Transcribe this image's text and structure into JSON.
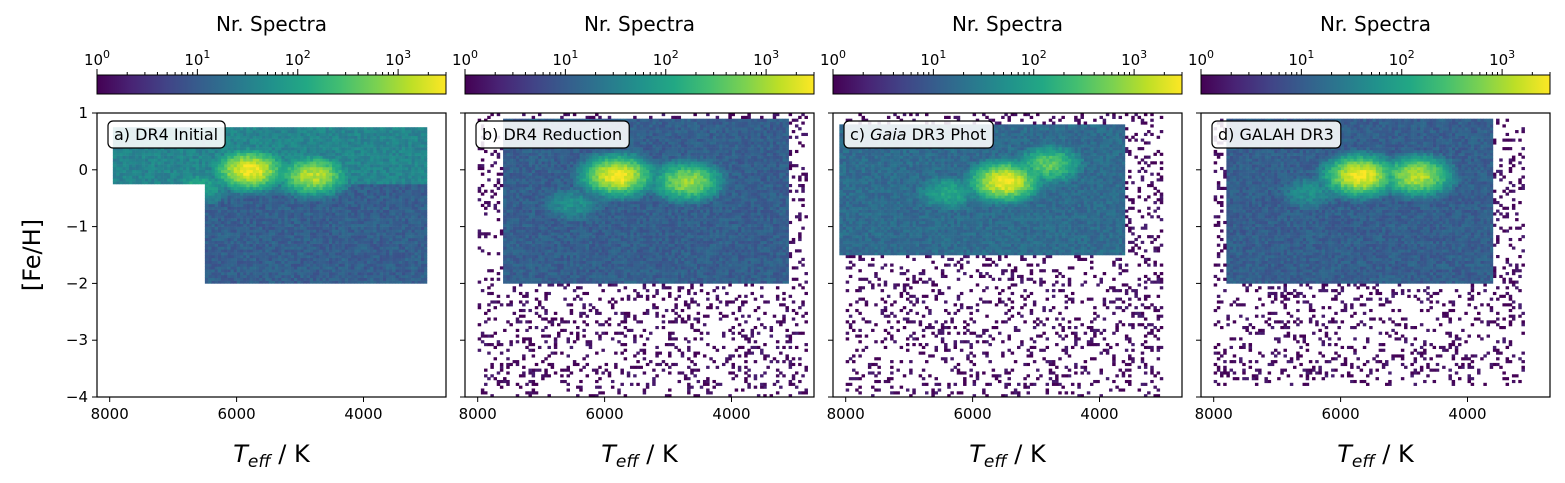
{
  "chart_data": [
    {
      "type": "heatmap",
      "panel_label": "a) DR4 Initial",
      "colorbar_label": "Nr. Spectra",
      "xlabel_symbol": "T",
      "xlabel_sub": "eff",
      "xlabel_unit": " / K",
      "ylabel": "[Fe/H]",
      "xlim": [
        8200,
        2700
      ],
      "ylim": [
        -4,
        1
      ],
      "xticks": [
        "8000",
        "6000",
        "4000"
      ],
      "yticks": [
        "1",
        "0",
        "−1",
        "−2",
        "−3",
        "−4"
      ],
      "colorbar_range": [
        1,
        3000
      ],
      "colorbar_ticks": [
        {
          "base": "10",
          "exp": "0"
        },
        {
          "base": "10",
          "exp": "1"
        },
        {
          "base": "10",
          "exp": "2"
        },
        {
          "base": "10",
          "exp": "3"
        }
      ],
      "colorbar_scale": "log",
      "density_regions": [
        {
          "teff": [
            3000,
            7950
          ],
          "feh": [
            -0.25,
            0.75
          ],
          "level": 0.45
        },
        {
          "teff": [
            3000,
            6500
          ],
          "feh": [
            -2.0,
            -0.25
          ],
          "level": 0.3
        },
        {
          "teff": [
            3000,
            3500
          ],
          "feh": [
            -2.0,
            -0.5
          ],
          "level": 0.1
        }
      ],
      "density_peaks": [
        {
          "teff": 5800,
          "feh": 0.0,
          "level": 1.0
        },
        {
          "teff": 4800,
          "feh": -0.1,
          "level": 0.9
        },
        {
          "teff": 6600,
          "feh": -0.3,
          "level": 0.6
        }
      ]
    },
    {
      "type": "heatmap",
      "panel_label": "b) DR4 Reduction",
      "colorbar_label": "Nr. Spectra",
      "xlabel_symbol": "T",
      "xlabel_sub": "eff",
      "xlabel_unit": " / K",
      "xlim": [
        8200,
        2700
      ],
      "ylim": [
        -4,
        1
      ],
      "xticks": [
        "8000",
        "6000",
        "4000"
      ],
      "colorbar_range": [
        1,
        3000
      ],
      "colorbar_ticks": [
        {
          "base": "10",
          "exp": "0"
        },
        {
          "base": "10",
          "exp": "1"
        },
        {
          "base": "10",
          "exp": "2"
        },
        {
          "base": "10",
          "exp": "3"
        }
      ],
      "colorbar_scale": "log",
      "density_regions": [
        {
          "teff": [
            3100,
            7600
          ],
          "feh": [
            -2.0,
            0.9
          ],
          "level": 0.3
        },
        {
          "teff": [
            2800,
            8000
          ],
          "feh": [
            -4.0,
            1.0
          ],
          "level": 0.03
        }
      ],
      "density_peaks": [
        {
          "teff": 5800,
          "feh": -0.1,
          "level": 1.0
        },
        {
          "teff": 4700,
          "feh": -0.2,
          "level": 0.85
        },
        {
          "teff": 6500,
          "feh": -0.6,
          "level": 0.5
        }
      ]
    },
    {
      "type": "heatmap",
      "panel_label_prefix": "c) ",
      "panel_label_italic": "Gaia",
      "panel_label_suffix": " DR3 Phot",
      "colorbar_label": "Nr. Spectra",
      "xlabel_symbol": "T",
      "xlabel_sub": "eff",
      "xlabel_unit": " / K",
      "xlim": [
        8200,
        2700
      ],
      "ylim": [
        -4,
        1
      ],
      "xticks": [
        "8000",
        "6000",
        "4000"
      ],
      "colorbar_range": [
        1,
        3000
      ],
      "colorbar_ticks": [
        {
          "base": "10",
          "exp": "0"
        },
        {
          "base": "10",
          "exp": "1"
        },
        {
          "base": "10",
          "exp": "2"
        },
        {
          "base": "10",
          "exp": "3"
        }
      ],
      "colorbar_scale": "log",
      "density_regions": [
        {
          "teff": [
            3600,
            8100
          ],
          "feh": [
            -1.5,
            0.8
          ],
          "level": 0.35
        },
        {
          "teff": [
            3000,
            8000
          ],
          "feh": [
            -4.0,
            1.0
          ],
          "level": 0.03
        }
      ],
      "density_peaks": [
        {
          "teff": 5500,
          "feh": -0.2,
          "level": 1.0
        },
        {
          "teff": 4800,
          "feh": 0.1,
          "level": 0.75
        },
        {
          "teff": 6400,
          "feh": -0.4,
          "level": 0.6
        }
      ]
    },
    {
      "type": "heatmap",
      "panel_label": "d) GALAH DR3",
      "colorbar_label": "Nr. Spectra",
      "xlabel_symbol": "T",
      "xlabel_sub": "eff",
      "xlabel_unit": " / K",
      "xlim": [
        8200,
        2700
      ],
      "ylim": [
        -4,
        1
      ],
      "xticks": [
        "8000",
        "6000",
        "4000"
      ],
      "colorbar_range": [
        1,
        3000
      ],
      "colorbar_ticks": [
        {
          "base": "10",
          "exp": "0"
        },
        {
          "base": "10",
          "exp": "1"
        },
        {
          "base": "10",
          "exp": "2"
        },
        {
          "base": "10",
          "exp": "3"
        }
      ],
      "colorbar_scale": "log",
      "density_regions": [
        {
          "teff": [
            3600,
            7800
          ],
          "feh": [
            -2.0,
            0.9
          ],
          "level": 0.3
        },
        {
          "teff": [
            3100,
            8000
          ],
          "feh": [
            -3.8,
            0.9
          ],
          "level": 0.03
        }
      ],
      "density_peaks": [
        {
          "teff": 5700,
          "feh": -0.1,
          "level": 1.0
        },
        {
          "teff": 4800,
          "feh": -0.1,
          "level": 0.9
        },
        {
          "teff": 6500,
          "feh": -0.4,
          "level": 0.5
        }
      ]
    }
  ]
}
